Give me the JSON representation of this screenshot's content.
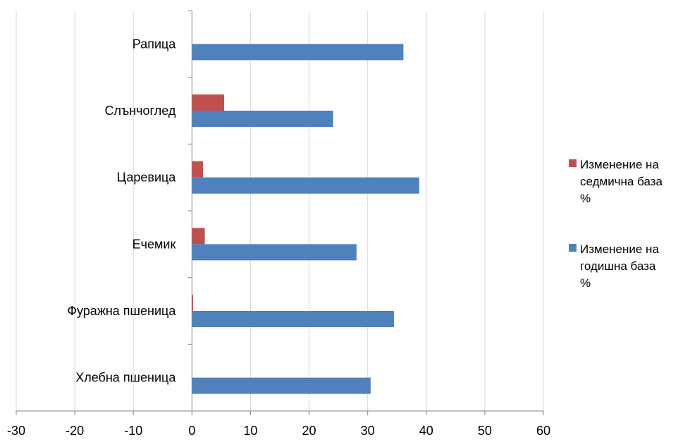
{
  "chart_data": {
    "type": "bar",
    "orientation": "horizontal",
    "categories": [
      "Хлебна пшеница",
      "Фуражна пшеница",
      "Ечемик",
      "Царевица",
      "Слънчоглед",
      "Рапица"
    ],
    "series": [
      {
        "name": "Изменение на седмична база %",
        "legend_lines": [
          "Изменение на",
          "седмична база",
          "%"
        ],
        "color": "#c0504d",
        "values": [
          0,
          0.2,
          2.2,
          1.9,
          5.5,
          0
        ]
      },
      {
        "name": "Изменение на годишна база %",
        "legend_lines": [
          "Изменение на",
          "годишна база",
          "%"
        ],
        "color": "#4f81bd",
        "values": [
          30.5,
          34.5,
          28.1,
          38.8,
          24.1,
          36.1
        ]
      }
    ],
    "xlim": [
      -30,
      60
    ],
    "x_ticks": [
      -30,
      -20,
      -10,
      0,
      10,
      20,
      30,
      40,
      50,
      60
    ],
    "grid": "vertical",
    "legend": "right",
    "title": "",
    "xlabel": "",
    "ylabel": ""
  }
}
